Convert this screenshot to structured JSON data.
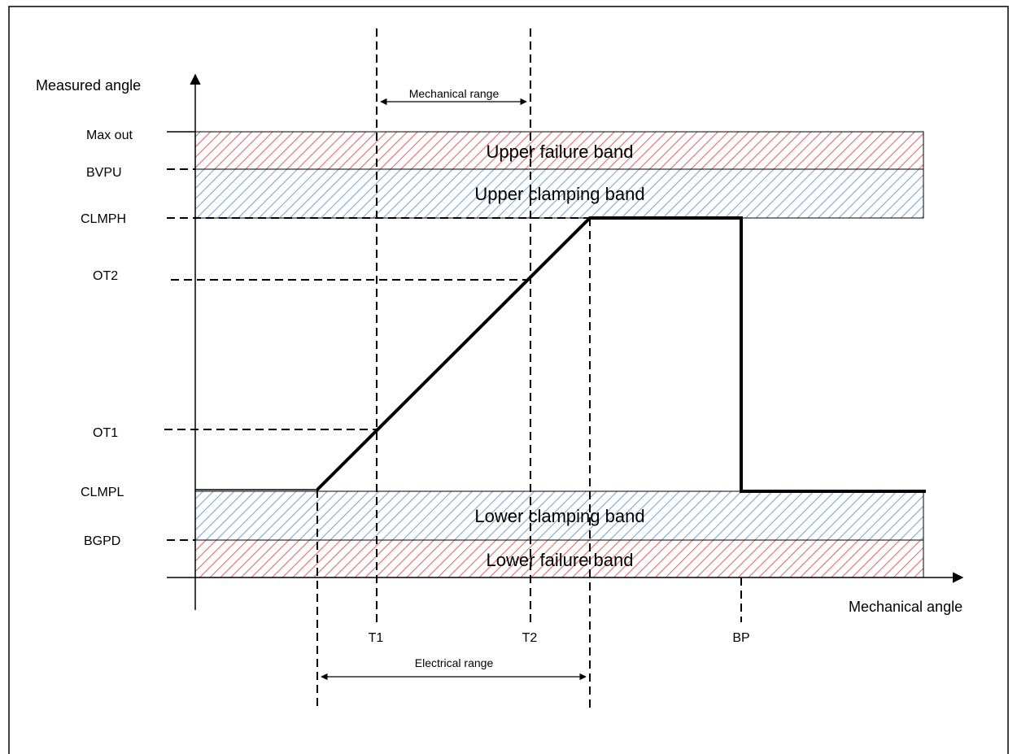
{
  "axes": {
    "y_label": "Measured angle",
    "x_label": "Mechanical angle"
  },
  "y_levels": {
    "max_out": "Max out",
    "bvpu": "BVPU",
    "clmph": "CLMPH",
    "ot2": "OT2",
    "ot1": "OT1",
    "clmpl": "CLMPL",
    "bgpd": "BGPD"
  },
  "x_markers": {
    "t1": "T1",
    "t2": "T2",
    "bp": "BP"
  },
  "bands": {
    "upper_failure": "Upper failure band",
    "upper_clamping": "Upper clamping band",
    "lower_clamping": "Lower clamping band",
    "lower_failure": "Lower failure band"
  },
  "ranges": {
    "mechanical": "Mechanical range",
    "electrical": "Electrical range"
  },
  "colors": {
    "failure_hatch": "#e26b6b",
    "clamping_hatch": "#7fa6d6"
  }
}
